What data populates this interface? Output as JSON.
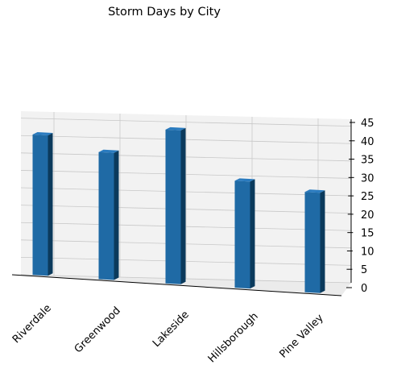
{
  "chart_data": {
    "type": "bar",
    "title": "Storm Days by City",
    "categories": [
      "Riverdale",
      "Greenwood",
      "Lakeside",
      "Hillsborough",
      "Pine Valley"
    ],
    "values": [
      42,
      38,
      46,
      32,
      30
    ],
    "xlabel": "",
    "ylabel": "",
    "ylim": [
      0,
      47
    ],
    "yticks": [
      0,
      5,
      10,
      15,
      20,
      25,
      30,
      35,
      40,
      45
    ],
    "grid": true,
    "projection": "3d",
    "bar_color": "#1f6aa5"
  }
}
